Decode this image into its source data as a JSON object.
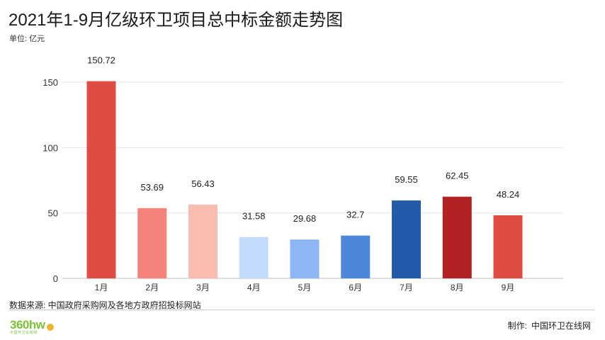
{
  "title": "2021年1-9月亿级环卫项目总中标金额走势图",
  "unit_label": "单位: 亿元",
  "source": "数据来源: 中国政府采购网及各地方政府招投标网站",
  "credit": {
    "label": "制作:",
    "name": "中国环卫在线网"
  },
  "logo": {
    "text": "360hw",
    "sub": "中国环卫在线网",
    "icon": "leaf-badge-icon"
  },
  "chart_data": {
    "type": "bar",
    "categories": [
      "1月",
      "2月",
      "3月",
      "4月",
      "5月",
      "6月",
      "7月",
      "8月",
      "9月"
    ],
    "values": [
      150.72,
      53.69,
      56.43,
      31.58,
      29.68,
      32.7,
      59.55,
      62.45,
      48.24
    ],
    "data_labels": [
      "150.72",
      "53.69",
      "56.43",
      "31.58",
      "29.68",
      "32.7",
      "59.55",
      "62.45",
      "48.24"
    ],
    "colors": [
      "#e04b44",
      "#f4847a",
      "#f8bcb0",
      "#c2dafc",
      "#8cb6f5",
      "#4d87d9",
      "#245aaa",
      "#b22222",
      "#e04b44"
    ],
    "yticks": [
      0,
      50,
      100,
      150
    ],
    "ylim": [
      0,
      150
    ],
    "grid": true,
    "legend": "none"
  }
}
